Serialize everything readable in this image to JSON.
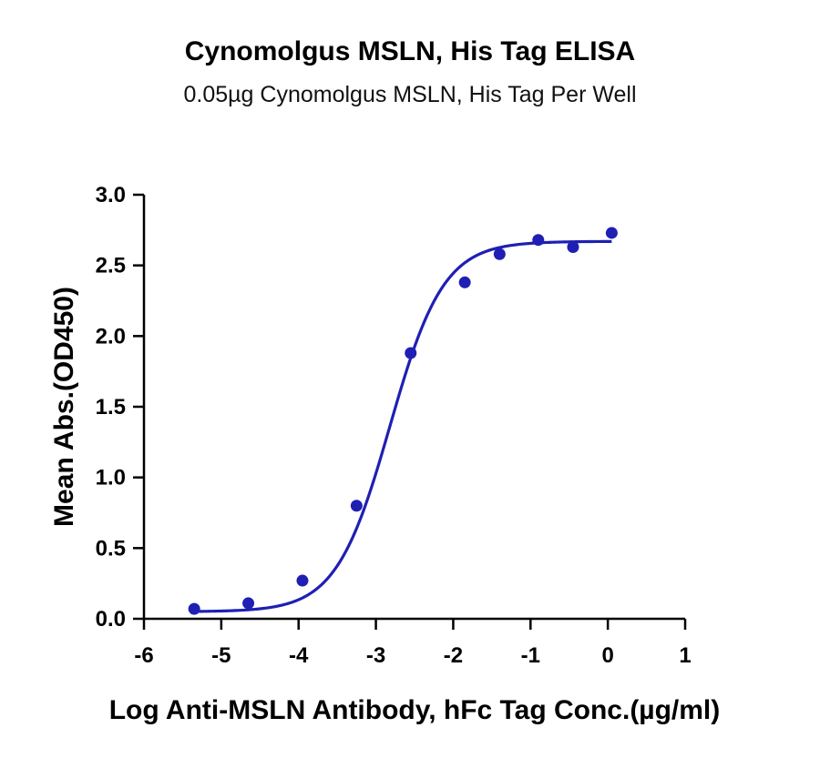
{
  "chart_data": {
    "type": "scatter",
    "title": "Cynomolgus MSLN, His Tag ELISA",
    "subtitle": "0.05µg Cynomolgus MSLN, His Tag Per Well",
    "xlabel": "Log Anti-MSLN Antibody, hFc Tag Conc.(µg/ml)",
    "ylabel": "Mean Abs.(OD450)",
    "xlim": [
      -6,
      1
    ],
    "ylim": [
      0,
      3.0
    ],
    "xticks": [
      "-6",
      "-5",
      "-4",
      "-3",
      "-2",
      "-1",
      "0",
      "1"
    ],
    "yticks": [
      "0.0",
      "0.5",
      "1.0",
      "1.5",
      "2.0",
      "2.5",
      "3.0"
    ],
    "series": [
      {
        "x": [
          -5.35,
          -4.65,
          -3.95,
          -3.25,
          -2.55,
          -1.85,
          -1.4,
          -0.9,
          -0.45,
          0.05
        ],
        "y": [
          0.07,
          0.11,
          0.27,
          0.8,
          1.88,
          2.38,
          2.58,
          2.68,
          2.63,
          2.73
        ]
      }
    ],
    "fit_curve": {
      "type": "4PL",
      "bottom": 0.05,
      "top": 2.67,
      "log_ec50": -2.82,
      "hill_slope": 1.25,
      "x_range": [
        -5.35,
        0.05
      ]
    },
    "grid": false,
    "legend": "none",
    "color": "#1f1fb4"
  }
}
